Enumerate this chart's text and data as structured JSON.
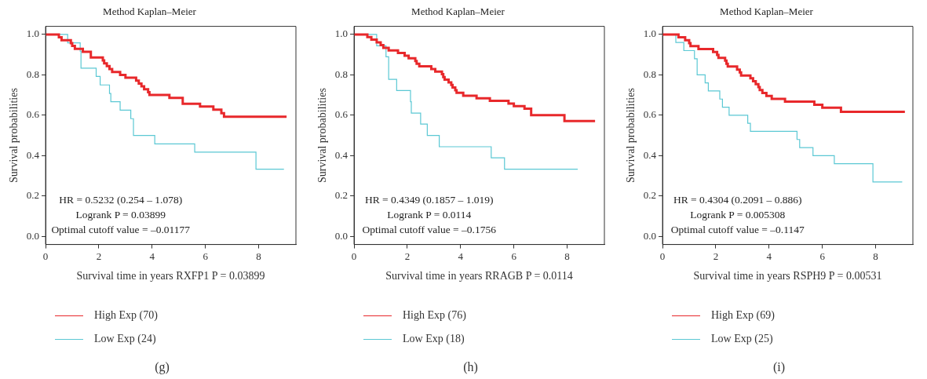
{
  "chart_data": [
    {
      "type": "step",
      "title": "Method Kaplan–Meier",
      "xlabel": "Survival time in years RXFP1 P = 0.03899",
      "ylabel": "Survival probabilities",
      "xlim": [
        0,
        9.4
      ],
      "ylim": [
        -0.04,
        1.04
      ],
      "xticks": [
        0,
        2,
        4,
        6,
        8
      ],
      "yticks": [
        {
          "value": 0,
          "label": "0.0"
        },
        {
          "value": 0.2,
          "label": "0.2"
        },
        {
          "value": 0.4,
          "label": "0.4"
        },
        {
          "value": 0.6,
          "label": "0.6"
        },
        {
          "value": 0.8,
          "label": "0.8"
        },
        {
          "value": 1,
          "label": "1.0"
        }
      ],
      "legend": "bottom",
      "annotations": [
        "HR = 0.5232 (0.254 – 1.078)",
        "Logrank P = 0.03899",
        "Optimal cutoff value = –0.01177",
        "(g)"
      ],
      "series": [
        {
          "name": "High Exp (70)",
          "color": "#e8282b",
          "x": [
            0,
            0.5,
            0.6,
            0.95,
            1.0,
            1.1,
            1.4,
            1.7,
            2.15,
            2.2,
            2.3,
            2.4,
            2.5,
            2.8,
            3.0,
            3.4,
            3.5,
            3.6,
            3.7,
            3.85,
            3.9,
            4.65,
            5.15,
            5.8,
            6.3,
            6.6,
            6.7,
            9.05
          ],
          "values": [
            1,
            0.986,
            0.971,
            0.957,
            0.943,
            0.929,
            0.914,
            0.886,
            0.871,
            0.857,
            0.843,
            0.829,
            0.814,
            0.8,
            0.786,
            0.771,
            0.757,
            0.743,
            0.729,
            0.714,
            0.7,
            0.686,
            0.657,
            0.643,
            0.628,
            0.61,
            0.593,
            0.593
          ]
        },
        {
          "name": "Low Exp (24)",
          "color": "#5bc8d4",
          "x": [
            0,
            0.83,
            1.3,
            1.33,
            1.9,
            2.05,
            2.4,
            2.45,
            2.8,
            3.2,
            3.3,
            4.1,
            5.6,
            7.9,
            8.95
          ],
          "values": [
            1,
            0.958,
            0.917,
            0.833,
            0.792,
            0.75,
            0.708,
            0.667,
            0.625,
            0.583,
            0.5,
            0.458,
            0.417,
            0.333,
            0.333
          ]
        }
      ]
    },
    {
      "type": "step",
      "title": "Method Kaplan–Meier",
      "xlabel": "Survival time in years RRAGB P = 0.0114",
      "ylabel": "Survival probabilities",
      "xlim": [
        0,
        9.4
      ],
      "ylim": [
        -0.04,
        1.04
      ],
      "xticks": [
        0,
        2,
        4,
        6,
        8
      ],
      "yticks": [
        {
          "value": 0,
          "label": "0.0"
        },
        {
          "value": 0.2,
          "label": "0.2"
        },
        {
          "value": 0.4,
          "label": "0.4"
        },
        {
          "value": 0.6,
          "label": "0.6"
        },
        {
          "value": 0.8,
          "label": "0.8"
        },
        {
          "value": 1,
          "label": "1.0"
        }
      ],
      "legend": "bottom",
      "annotations": [
        "HR = 0.4349 (0.1857 – 1.019)",
        "Logrank P = 0.0114",
        "Optimal cutoff value = –0.1756",
        "(h)"
      ],
      "series": [
        {
          "name": "High Exp (76)",
          "color": "#e8282b",
          "x": [
            0,
            0.5,
            0.65,
            0.85,
            1.0,
            1.1,
            1.3,
            1.65,
            1.9,
            2.05,
            2.3,
            2.35,
            2.45,
            2.9,
            3.05,
            3.3,
            3.35,
            3.4,
            3.55,
            3.65,
            3.7,
            3.8,
            3.85,
            4.1,
            4.6,
            5.1,
            5.8,
            6.0,
            6.4,
            6.65,
            7.9,
            9.05
          ],
          "values": [
            1,
            0.987,
            0.974,
            0.961,
            0.947,
            0.934,
            0.921,
            0.908,
            0.895,
            0.882,
            0.868,
            0.855,
            0.842,
            0.829,
            0.816,
            0.803,
            0.789,
            0.776,
            0.763,
            0.75,
            0.737,
            0.724,
            0.711,
            0.697,
            0.684,
            0.671,
            0.658,
            0.645,
            0.632,
            0.6,
            0.571,
            0.571
          ]
        },
        {
          "name": "Low Exp (18)",
          "color": "#5bc8d4",
          "x": [
            0,
            0.85,
            1.2,
            1.3,
            1.6,
            2.12,
            2.15,
            2.5,
            2.75,
            3.2,
            5.15,
            5.65,
            8.4
          ],
          "values": [
            1,
            0.944,
            0.889,
            0.778,
            0.722,
            0.667,
            0.611,
            0.556,
            0.5,
            0.444,
            0.389,
            0.333,
            0.333
          ]
        }
      ]
    },
    {
      "type": "step",
      "title": "Method Kaplan–Meier",
      "xlabel": "Survival time in years RSPH9 P = 0.00531",
      "ylabel": "Survival probabilities",
      "xlim": [
        0,
        9.4
      ],
      "ylim": [
        -0.04,
        1.04
      ],
      "xticks": [
        0,
        2,
        4,
        6,
        8
      ],
      "yticks": [
        {
          "value": 0,
          "label": "0.0"
        },
        {
          "value": 0.2,
          "label": "0.2"
        },
        {
          "value": 0.4,
          "label": "0.4"
        },
        {
          "value": 0.6,
          "label": "0.6"
        },
        {
          "value": 0.8,
          "label": "0.8"
        },
        {
          "value": 1,
          "label": "1.0"
        }
      ],
      "legend": "bottom",
      "annotations": [
        "HR = 0.4304 (0.2091 – 0.886)",
        "Logrank P = 0.005308",
        "Optimal cutoff value = –0.1147",
        "(i)"
      ],
      "series": [
        {
          "name": "High Exp (69)",
          "color": "#e8282b",
          "x": [
            0,
            0.6,
            0.85,
            1.0,
            1.05,
            1.35,
            1.9,
            2.05,
            2.1,
            2.35,
            2.4,
            2.45,
            2.8,
            2.9,
            2.95,
            3.3,
            3.4,
            3.5,
            3.6,
            3.65,
            3.75,
            3.9,
            4.1,
            4.6,
            5.7,
            6.0,
            6.7,
            9.1
          ],
          "values": [
            1,
            0.986,
            0.971,
            0.957,
            0.942,
            0.928,
            0.913,
            0.899,
            0.884,
            0.87,
            0.855,
            0.841,
            0.826,
            0.812,
            0.797,
            0.783,
            0.768,
            0.754,
            0.739,
            0.725,
            0.71,
            0.696,
            0.681,
            0.667,
            0.652,
            0.637,
            0.617,
            0.617
          ]
        },
        {
          "name": "Low Exp (25)",
          "color": "#5bc8d4",
          "x": [
            0,
            0.5,
            0.8,
            1.2,
            1.3,
            1.6,
            1.72,
            2.15,
            2.25,
            2.5,
            3.2,
            3.3,
            5.05,
            5.15,
            5.65,
            6.45,
            7.9,
            9.0
          ],
          "values": [
            1,
            0.96,
            0.92,
            0.88,
            0.8,
            0.76,
            0.72,
            0.68,
            0.64,
            0.6,
            0.56,
            0.52,
            0.48,
            0.44,
            0.4,
            0.36,
            0.27,
            0.27
          ]
        }
      ]
    }
  ]
}
